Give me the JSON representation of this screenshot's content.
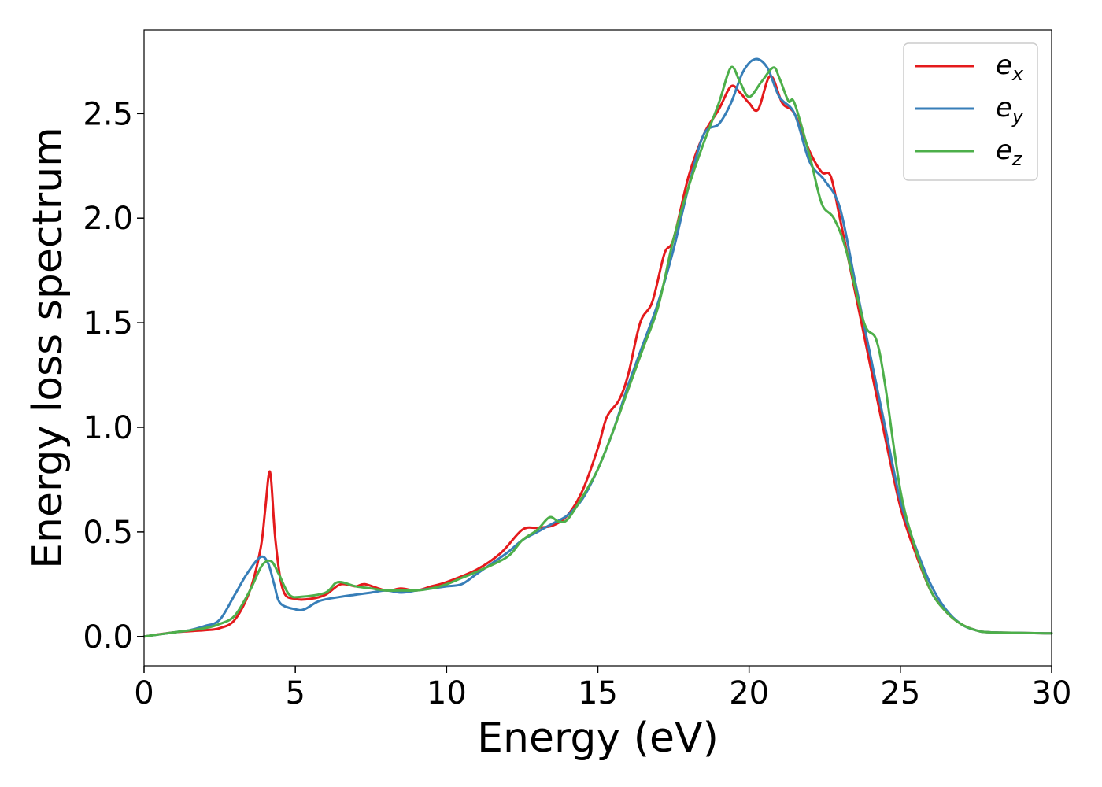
{
  "chart_data": {
    "type": "line",
    "title": "",
    "xlabel": "Energy (eV)",
    "ylabel": "Energy loss spectrum",
    "xlim": [
      0,
      30
    ],
    "ylim": [
      -0.14,
      2.9
    ],
    "xticks": [
      0,
      5,
      10,
      15,
      20,
      25,
      30
    ],
    "xtick_labels": [
      "0",
      "5",
      "10",
      "15",
      "20",
      "25",
      "30"
    ],
    "yticks": [
      0.0,
      0.5,
      1.0,
      1.5,
      2.0,
      2.5
    ],
    "ytick_labels": [
      "0.0",
      "0.5",
      "1.0",
      "1.5",
      "2.0",
      "2.5"
    ],
    "grid": false,
    "legend_position": "top-right",
    "series": [
      {
        "name": "e_x",
        "legend_base": "e",
        "legend_sub": "x",
        "color": "#e41a1c",
        "points": [
          [
            0,
            0
          ],
          [
            1,
            0.02
          ],
          [
            2,
            0.03
          ],
          [
            2.5,
            0.04
          ],
          [
            3,
            0.08
          ],
          [
            3.5,
            0.22
          ],
          [
            3.85,
            0.42
          ],
          [
            4.0,
            0.6
          ],
          [
            4.12,
            0.77
          ],
          [
            4.2,
            0.75
          ],
          [
            4.35,
            0.45
          ],
          [
            4.6,
            0.22
          ],
          [
            5,
            0.18
          ],
          [
            5.5,
            0.18
          ],
          [
            6,
            0.2
          ],
          [
            6.5,
            0.25
          ],
          [
            7,
            0.24
          ],
          [
            7.3,
            0.25
          ],
          [
            8,
            0.22
          ],
          [
            8.5,
            0.23
          ],
          [
            9,
            0.22
          ],
          [
            9.5,
            0.24
          ],
          [
            10,
            0.26
          ],
          [
            11,
            0.32
          ],
          [
            11.8,
            0.4
          ],
          [
            12.5,
            0.51
          ],
          [
            13,
            0.52
          ],
          [
            13.5,
            0.53
          ],
          [
            14,
            0.58
          ],
          [
            14.5,
            0.7
          ],
          [
            15,
            0.9
          ],
          [
            15.3,
            1.05
          ],
          [
            15.7,
            1.13
          ],
          [
            16,
            1.25
          ],
          [
            16.4,
            1.5
          ],
          [
            16.8,
            1.6
          ],
          [
            17.2,
            1.83
          ],
          [
            17.5,
            1.9
          ],
          [
            18,
            2.2
          ],
          [
            18.5,
            2.4
          ],
          [
            19,
            2.52
          ],
          [
            19.4,
            2.63
          ],
          [
            19.7,
            2.6
          ],
          [
            20,
            2.55
          ],
          [
            20.3,
            2.52
          ],
          [
            20.7,
            2.68
          ],
          [
            21.1,
            2.55
          ],
          [
            21.5,
            2.5
          ],
          [
            22,
            2.32
          ],
          [
            22.4,
            2.22
          ],
          [
            22.7,
            2.2
          ],
          [
            23,
            2.0
          ],
          [
            23.5,
            1.65
          ],
          [
            24,
            1.3
          ],
          [
            24.5,
            0.95
          ],
          [
            25,
            0.62
          ],
          [
            25.5,
            0.4
          ],
          [
            26,
            0.22
          ],
          [
            26.5,
            0.12
          ],
          [
            27,
            0.06
          ],
          [
            27.5,
            0.03
          ],
          [
            28,
            0.02
          ],
          [
            30,
            0.015
          ]
        ]
      },
      {
        "name": "e_y",
        "legend_base": "e",
        "legend_sub": "y",
        "color": "#377eb8",
        "points": [
          [
            0,
            0
          ],
          [
            1,
            0.02
          ],
          [
            1.5,
            0.03
          ],
          [
            2,
            0.05
          ],
          [
            2.5,
            0.08
          ],
          [
            3,
            0.2
          ],
          [
            3.4,
            0.3
          ],
          [
            3.85,
            0.38
          ],
          [
            4.1,
            0.35
          ],
          [
            4.3,
            0.25
          ],
          [
            4.5,
            0.16
          ],
          [
            5,
            0.13
          ],
          [
            5.3,
            0.13
          ],
          [
            5.8,
            0.17
          ],
          [
            6.5,
            0.19
          ],
          [
            7,
            0.2
          ],
          [
            7.5,
            0.21
          ],
          [
            8,
            0.22
          ],
          [
            8.5,
            0.21
          ],
          [
            9,
            0.22
          ],
          [
            9.5,
            0.23
          ],
          [
            10,
            0.24
          ],
          [
            10.5,
            0.25
          ],
          [
            11,
            0.3
          ],
          [
            11.5,
            0.35
          ],
          [
            12,
            0.4
          ],
          [
            12.5,
            0.46
          ],
          [
            13,
            0.5
          ],
          [
            13.5,
            0.54
          ],
          [
            14,
            0.58
          ],
          [
            14.5,
            0.66
          ],
          [
            15,
            0.8
          ],
          [
            15.5,
            0.98
          ],
          [
            16,
            1.2
          ],
          [
            16.5,
            1.4
          ],
          [
            17,
            1.6
          ],
          [
            17.5,
            1.85
          ],
          [
            18,
            2.15
          ],
          [
            18.5,
            2.4
          ],
          [
            19,
            2.45
          ],
          [
            19.4,
            2.55
          ],
          [
            19.8,
            2.7
          ],
          [
            20.2,
            2.76
          ],
          [
            20.6,
            2.72
          ],
          [
            21,
            2.58
          ],
          [
            21.5,
            2.5
          ],
          [
            22,
            2.27
          ],
          [
            22.5,
            2.18
          ],
          [
            23,
            2.05
          ],
          [
            23.5,
            1.7
          ],
          [
            24,
            1.35
          ],
          [
            24.5,
            1.0
          ],
          [
            25,
            0.65
          ],
          [
            25.5,
            0.43
          ],
          [
            26,
            0.25
          ],
          [
            26.5,
            0.13
          ],
          [
            27,
            0.06
          ],
          [
            27.5,
            0.03
          ],
          [
            28,
            0.02
          ],
          [
            30,
            0.015
          ]
        ]
      },
      {
        "name": "e_z",
        "legend_base": "e",
        "legend_sub": "z",
        "color": "#4daf4a",
        "points": [
          [
            0,
            0
          ],
          [
            1,
            0.02
          ],
          [
            2,
            0.04
          ],
          [
            2.5,
            0.06
          ],
          [
            3,
            0.1
          ],
          [
            3.5,
            0.22
          ],
          [
            3.9,
            0.34
          ],
          [
            4.2,
            0.36
          ],
          [
            4.45,
            0.3
          ],
          [
            4.8,
            0.2
          ],
          [
            5.2,
            0.19
          ],
          [
            6,
            0.21
          ],
          [
            6.4,
            0.26
          ],
          [
            7,
            0.24
          ],
          [
            7.5,
            0.23
          ],
          [
            8,
            0.22
          ],
          [
            8.5,
            0.22
          ],
          [
            9,
            0.22
          ],
          [
            9.5,
            0.23
          ],
          [
            10,
            0.25
          ],
          [
            10.5,
            0.28
          ],
          [
            11,
            0.31
          ],
          [
            12,
            0.38
          ],
          [
            12.5,
            0.46
          ],
          [
            13,
            0.51
          ],
          [
            13.4,
            0.57
          ],
          [
            13.7,
            0.55
          ],
          [
            14,
            0.56
          ],
          [
            14.5,
            0.67
          ],
          [
            15,
            0.8
          ],
          [
            15.5,
            0.98
          ],
          [
            16,
            1.18
          ],
          [
            16.5,
            1.38
          ],
          [
            17,
            1.58
          ],
          [
            17.5,
            1.9
          ],
          [
            18,
            2.15
          ],
          [
            18.5,
            2.36
          ],
          [
            19,
            2.55
          ],
          [
            19.4,
            2.72
          ],
          [
            19.7,
            2.65
          ],
          [
            20,
            2.58
          ],
          [
            20.4,
            2.65
          ],
          [
            20.8,
            2.72
          ],
          [
            21,
            2.67
          ],
          [
            21.3,
            2.56
          ],
          [
            21.5,
            2.55
          ],
          [
            22,
            2.3
          ],
          [
            22.4,
            2.07
          ],
          [
            22.8,
            2.0
          ],
          [
            23.2,
            1.85
          ],
          [
            23.8,
            1.5
          ],
          [
            24.2,
            1.42
          ],
          [
            24.5,
            1.2
          ],
          [
            25,
            0.7
          ],
          [
            25.5,
            0.42
          ],
          [
            26,
            0.22
          ],
          [
            26.5,
            0.12
          ],
          [
            27,
            0.06
          ],
          [
            27.5,
            0.03
          ],
          [
            28,
            0.02
          ],
          [
            30,
            0.015
          ]
        ]
      }
    ]
  }
}
